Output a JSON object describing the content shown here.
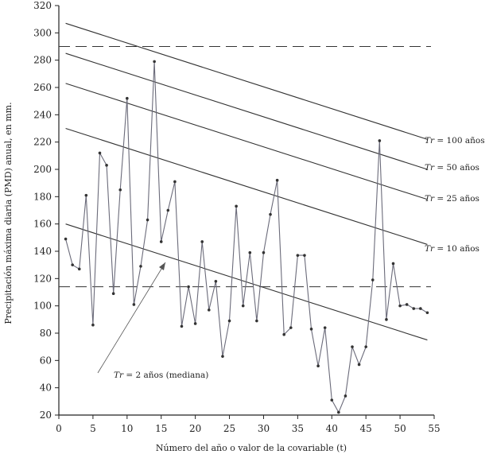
{
  "chart_data": {
    "type": "line",
    "xlabel": "Número del año o valor de la covariable (t)",
    "ylabel": "Precipitación máxima diaria (PMD) anual, en mm.",
    "xlim": [
      0,
      55
    ],
    "ylim": [
      20,
      320
    ],
    "x_ticks": [
      0,
      5,
      10,
      15,
      20,
      25,
      30,
      35,
      40,
      45,
      50,
      55
    ],
    "y_ticks": [
      20,
      40,
      60,
      80,
      100,
      120,
      140,
      160,
      180,
      200,
      220,
      240,
      260,
      280,
      300,
      320
    ],
    "grid": false,
    "series": [
      {
        "x": [
          1,
          2,
          3,
          4,
          5,
          6,
          7,
          8,
          9,
          10,
          11,
          12,
          13,
          14,
          15,
          16,
          17,
          18,
          19,
          20,
          21,
          22,
          23,
          24,
          25,
          26,
          27,
          28,
          29,
          30,
          31,
          32,
          33,
          34,
          35,
          36,
          37,
          38,
          39,
          40,
          41,
          42,
          43,
          44,
          45,
          46,
          47,
          48,
          49,
          50,
          51,
          52,
          53,
          54
        ],
        "values": [
          149,
          130,
          127,
          181,
          86,
          212,
          203,
          109,
          185,
          252,
          101,
          129,
          163,
          279,
          147,
          170,
          191,
          85,
          114,
          87,
          147,
          97,
          118,
          63,
          89,
          173,
          100,
          139,
          89,
          139,
          167,
          192,
          79,
          84,
          137,
          137,
          83,
          56,
          84,
          31,
          22,
          34,
          70,
          57,
          70,
          119,
          221,
          90,
          131,
          100,
          101,
          98,
          98,
          95
        ]
      }
    ],
    "trend_lines": [
      {
        "label": "Tr = 100 años",
        "x": [
          1,
          54
        ],
        "values": [
          307,
          222
        ]
      },
      {
        "label": "Tr = 50 años",
        "x": [
          1,
          54
        ],
        "values": [
          285,
          200
        ]
      },
      {
        "label": "Tr = 25 años",
        "x": [
          1,
          54
        ],
        "values": [
          263,
          178
        ]
      },
      {
        "label": "Tr = 10 años",
        "x": [
          1,
          54
        ],
        "values": [
          230,
          145
        ]
      },
      {
        "label": "Tr = 2 años (mediana)",
        "x": [
          1,
          54
        ],
        "values": [
          160,
          75
        ]
      }
    ],
    "dashed_lines": [
      290,
      114
    ],
    "annotations": {
      "tr100": {
        "prefix": "Tr",
        "rest": " = 100 años"
      },
      "tr50": {
        "prefix": "Tr",
        "rest": " = 50 años"
      },
      "tr25": {
        "prefix": "Tr",
        "rest": " = 25 años"
      },
      "tr10": {
        "prefix": "Tr",
        "rest": " = 10 años"
      },
      "tr2": {
        "prefix": "Tr",
        "rest": " = 2 años (mediana)"
      }
    }
  }
}
